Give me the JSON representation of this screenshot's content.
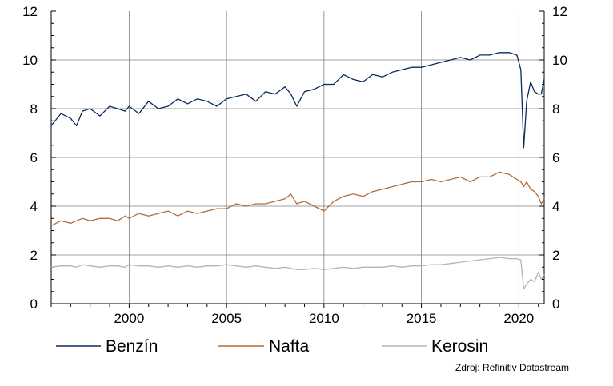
{
  "chart_data": {
    "type": "line",
    "x_range": [
      1996.0,
      2021.3
    ],
    "ylim": [
      0,
      12
    ],
    "y_ticks": [
      0,
      2,
      4,
      6,
      8,
      10,
      12
    ],
    "y_tick_labels": [
      "0",
      "2",
      "4",
      "6",
      "8",
      "10",
      "12"
    ],
    "x_ticks": [
      2000,
      2005,
      2010,
      2015,
      2020
    ],
    "x_tick_labels": [
      "2000",
      "2005",
      "2010",
      "2015",
      "2020"
    ],
    "grid": true,
    "legend_position": "bottom",
    "source": "Zdroj: Refinitiv Datastream",
    "series": [
      {
        "name": "Benzín",
        "color": "#0b2b5a",
        "x": [
          1996.0,
          1996.5,
          1997.0,
          1997.3,
          1997.6,
          1998.0,
          1998.5,
          1999.0,
          1999.4,
          1999.8,
          2000.0,
          2000.5,
          2001.0,
          2001.5,
          2002.0,
          2002.5,
          2003.0,
          2003.5,
          2004.0,
          2004.5,
          2005.0,
          2005.5,
          2006.0,
          2006.5,
          2007.0,
          2007.5,
          2008.0,
          2008.3,
          2008.6,
          2009.0,
          2009.5,
          2010.0,
          2010.5,
          2011.0,
          2011.5,
          2012.0,
          2012.5,
          2013.0,
          2013.5,
          2014.0,
          2014.5,
          2015.0,
          2015.5,
          2016.0,
          2016.5,
          2017.0,
          2017.5,
          2018.0,
          2018.5,
          2019.0,
          2019.5,
          2019.9,
          2020.1,
          2020.25,
          2020.4,
          2020.6,
          2020.8,
          2021.0,
          2021.15,
          2021.3
        ],
        "values": [
          7.3,
          7.8,
          7.6,
          7.3,
          7.9,
          8.0,
          7.7,
          8.1,
          8.0,
          7.9,
          8.1,
          7.8,
          8.3,
          8.0,
          8.1,
          8.4,
          8.2,
          8.4,
          8.3,
          8.1,
          8.4,
          8.5,
          8.6,
          8.3,
          8.7,
          8.6,
          8.9,
          8.6,
          8.1,
          8.7,
          8.8,
          9.0,
          9.0,
          9.4,
          9.2,
          9.1,
          9.4,
          9.3,
          9.5,
          9.6,
          9.7,
          9.7,
          9.8,
          9.9,
          10.0,
          10.1,
          10.0,
          10.2,
          10.2,
          10.3,
          10.3,
          10.2,
          9.6,
          6.4,
          8.3,
          9.1,
          8.7,
          8.6,
          8.6,
          9.2
        ]
      },
      {
        "name": "Nafta",
        "color": "#b06d3a",
        "x": [
          1996.0,
          1996.5,
          1997.0,
          1997.3,
          1997.6,
          1998.0,
          1998.5,
          1999.0,
          1999.4,
          1999.8,
          2000.0,
          2000.5,
          2001.0,
          2001.5,
          2002.0,
          2002.5,
          2003.0,
          2003.5,
          2004.0,
          2004.5,
          2005.0,
          2005.5,
          2006.0,
          2006.5,
          2007.0,
          2007.5,
          2008.0,
          2008.3,
          2008.6,
          2009.0,
          2009.5,
          2010.0,
          2010.5,
          2011.0,
          2011.5,
          2012.0,
          2012.5,
          2013.0,
          2013.5,
          2014.0,
          2014.5,
          2015.0,
          2015.5,
          2016.0,
          2016.5,
          2017.0,
          2017.5,
          2018.0,
          2018.5,
          2019.0,
          2019.5,
          2019.9,
          2020.1,
          2020.25,
          2020.4,
          2020.6,
          2020.8,
          2021.0,
          2021.15,
          2021.3
        ],
        "values": [
          3.2,
          3.4,
          3.3,
          3.4,
          3.5,
          3.4,
          3.5,
          3.5,
          3.4,
          3.6,
          3.5,
          3.7,
          3.6,
          3.7,
          3.8,
          3.6,
          3.8,
          3.7,
          3.8,
          3.9,
          3.9,
          4.1,
          4.0,
          4.1,
          4.1,
          4.2,
          4.3,
          4.5,
          4.1,
          4.2,
          4.0,
          3.8,
          4.2,
          4.4,
          4.5,
          4.4,
          4.6,
          4.7,
          4.8,
          4.9,
          5.0,
          5.0,
          5.1,
          5.0,
          5.1,
          5.2,
          5.0,
          5.2,
          5.2,
          5.4,
          5.3,
          5.1,
          5.0,
          4.8,
          5.0,
          4.7,
          4.6,
          4.4,
          4.1,
          4.3
        ]
      },
      {
        "name": "Kerosin",
        "color": "#b5b5b5",
        "x": [
          1996.0,
          1996.5,
          1997.0,
          1997.3,
          1997.6,
          1998.0,
          1998.5,
          1999.0,
          1999.4,
          1999.8,
          2000.0,
          2000.5,
          2001.0,
          2001.5,
          2002.0,
          2002.5,
          2003.0,
          2003.5,
          2004.0,
          2004.5,
          2005.0,
          2005.5,
          2006.0,
          2006.5,
          2007.0,
          2007.5,
          2008.0,
          2008.3,
          2008.6,
          2009.0,
          2009.5,
          2010.0,
          2010.5,
          2011.0,
          2011.5,
          2012.0,
          2012.5,
          2013.0,
          2013.5,
          2014.0,
          2014.5,
          2015.0,
          2015.5,
          2016.0,
          2016.5,
          2017.0,
          2017.5,
          2018.0,
          2018.5,
          2019.0,
          2019.5,
          2019.9,
          2020.1,
          2020.25,
          2020.4,
          2020.6,
          2020.8,
          2021.0,
          2021.15,
          2021.3
        ],
        "values": [
          1.5,
          1.55,
          1.55,
          1.5,
          1.6,
          1.55,
          1.5,
          1.55,
          1.55,
          1.5,
          1.6,
          1.55,
          1.55,
          1.5,
          1.55,
          1.5,
          1.55,
          1.5,
          1.55,
          1.55,
          1.6,
          1.55,
          1.5,
          1.55,
          1.5,
          1.45,
          1.5,
          1.45,
          1.4,
          1.4,
          1.45,
          1.4,
          1.45,
          1.5,
          1.45,
          1.5,
          1.5,
          1.5,
          1.55,
          1.5,
          1.55,
          1.55,
          1.6,
          1.6,
          1.65,
          1.7,
          1.75,
          1.8,
          1.85,
          1.9,
          1.85,
          1.85,
          1.8,
          0.6,
          0.8,
          1.0,
          0.9,
          1.3,
          1.0,
          1.2
        ]
      }
    ]
  }
}
